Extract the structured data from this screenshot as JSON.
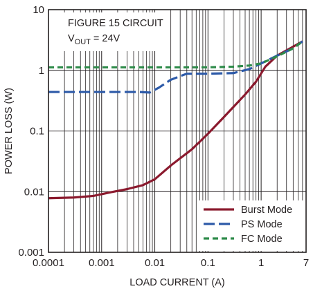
{
  "chart_data": {
    "type": "line",
    "xlabel": "LOAD CURRENT (A)",
    "ylabel": "POWER LOSS (W)",
    "xscale": "log",
    "yscale": "log",
    "xlim": [
      0.0001,
      7
    ],
    "ylim": [
      0.001,
      10
    ],
    "grid": true,
    "x_ticks": [
      {
        "value": 0.0001,
        "label": "0.0001"
      },
      {
        "value": 0.001,
        "label": "0.001"
      },
      {
        "value": 0.01,
        "label": "0.01"
      },
      {
        "value": 0.1,
        "label": "0.1"
      },
      {
        "value": 1,
        "label": "1"
      },
      {
        "value": 7,
        "label": "7"
      }
    ],
    "y_ticks": [
      {
        "value": 0.001,
        "label": "0.001"
      },
      {
        "value": 0.01,
        "label": "0.01"
      },
      {
        "value": 0.1,
        "label": "0.1"
      },
      {
        "value": 1,
        "label": "1"
      },
      {
        "value": 10,
        "label": "10"
      }
    ],
    "annotation": {
      "line1": "FIGURE 15 CIRCUIT",
      "line2_main": "V",
      "line2_sub": "OUT",
      "line2_rest": " = 24V"
    },
    "legend_position": "bottom-right",
    "series": [
      {
        "name": "Burst Mode",
        "color": "#8b1a2e",
        "dash": "solid",
        "x": [
          0.0001,
          0.0003,
          0.0007,
          0.0015,
          0.003,
          0.006,
          0.01,
          0.02,
          0.05,
          0.1,
          0.2,
          0.5,
          0.8,
          1.2,
          2,
          3.5,
          6
        ],
        "y": [
          0.0078,
          0.008,
          0.0085,
          0.0098,
          0.011,
          0.0128,
          0.016,
          0.027,
          0.05,
          0.09,
          0.17,
          0.4,
          0.65,
          1.15,
          1.75,
          2.3,
          3.0
        ]
      },
      {
        "name": "PS Mode",
        "color": "#2d5aa8",
        "dash": "dash",
        "x": [
          0.0001,
          0.001,
          0.005,
          0.008,
          0.012,
          0.02,
          0.04,
          0.1,
          0.3,
          0.6,
          1,
          2,
          4,
          6
        ],
        "y": [
          0.44,
          0.44,
          0.44,
          0.43,
          0.52,
          0.7,
          0.88,
          0.88,
          0.9,
          1.05,
          1.3,
          1.75,
          2.3,
          3.0
        ]
      },
      {
        "name": "FC Mode",
        "color": "#2e8b4a",
        "dash": "dash",
        "x": [
          0.0001,
          0.001,
          0.01,
          0.1,
          0.3,
          0.6,
          1,
          2,
          4,
          6
        ],
        "y": [
          1.12,
          1.12,
          1.12,
          1.12,
          1.15,
          1.2,
          1.3,
          1.7,
          2.3,
          3.0
        ]
      }
    ]
  }
}
